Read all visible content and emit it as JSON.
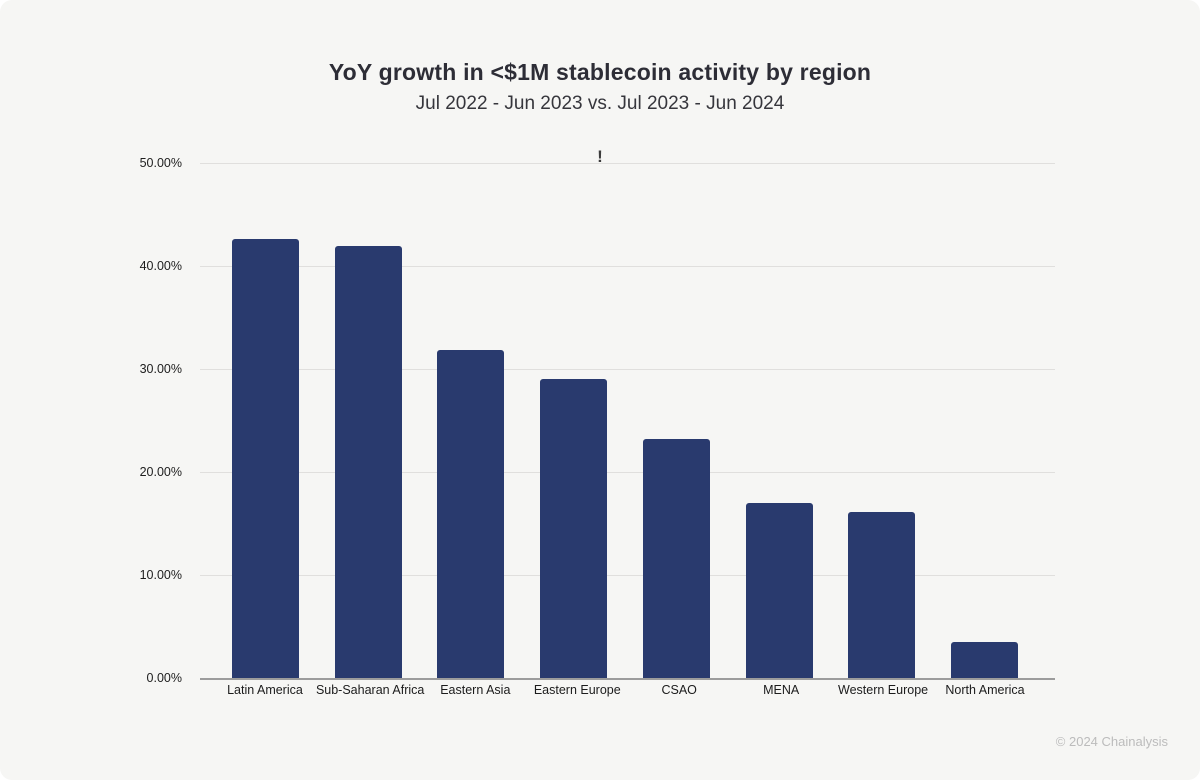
{
  "title": "YoY growth in <$1M stablecoin activity by region",
  "subtitle": "Jul 2022 - Jun 2023 vs. Jul 2023 - Jun 2024",
  "annotation": "!",
  "footer": "© 2024 Chainalysis",
  "colors": {
    "background": "#f6f6f4",
    "bar": "#293a6e",
    "gridline": "#e0dfdd",
    "axis_line": "#9c9c9c",
    "title": "#2d2d36",
    "tick": "#1e1e1e",
    "footer": "#bcbcbc"
  },
  "chart_data": {
    "type": "bar",
    "categories": [
      "Latin America",
      "Sub-Saharan Africa",
      "Eastern Asia",
      "Eastern Europe",
      "CSAO",
      "MENA",
      "Western Europe",
      "North America"
    ],
    "values": [
      42.6,
      41.9,
      31.8,
      29.0,
      23.2,
      17.0,
      16.1,
      3.5
    ],
    "title": "YoY growth in <$1M stablecoin activity by region",
    "subtitle": "Jul 2022 - Jun 2023 vs. Jul 2023 - Jun 2024",
    "xlabel": "",
    "ylabel": "",
    "ylim": [
      0,
      50
    ],
    "ytick_values": [
      50,
      40,
      30,
      20,
      10,
      0
    ],
    "ytick_labels": [
      "50.00%",
      "40.00%",
      "30.00%",
      "20.00%",
      "10.00%",
      "0.00%"
    ],
    "grid": true,
    "legend": false
  }
}
